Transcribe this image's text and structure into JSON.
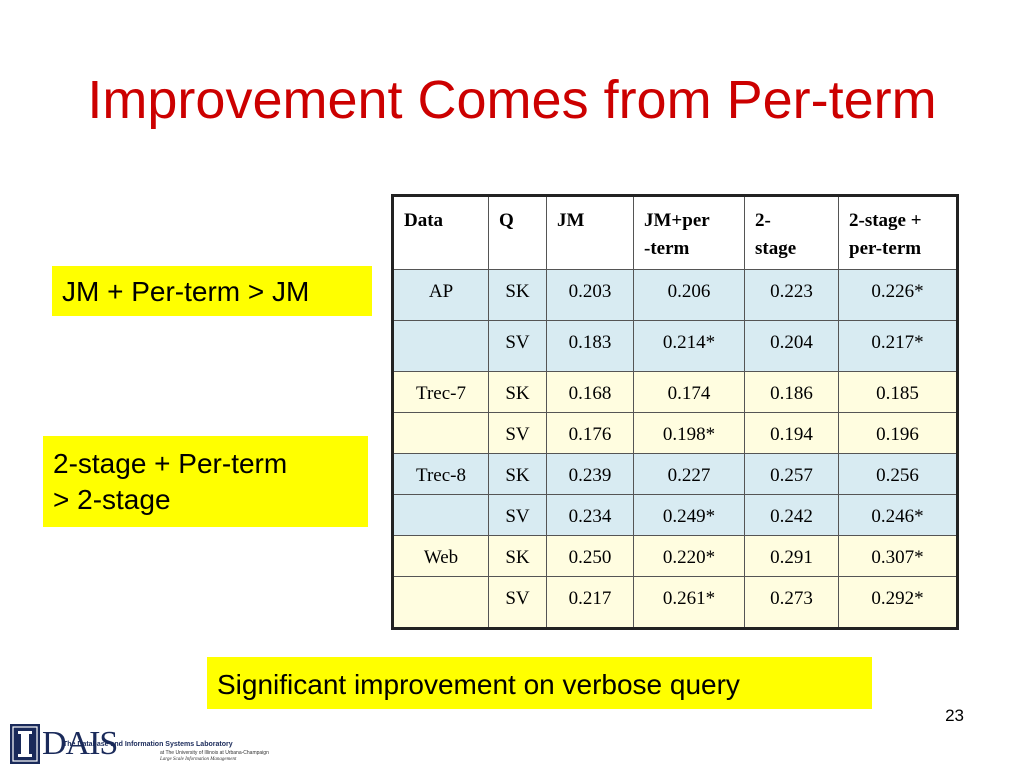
{
  "slide": {
    "title": "Improvement Comes from Per-term",
    "page_number": "23"
  },
  "callouts": {
    "callout1": "JM + Per-term > JM",
    "callout2_line1": "2-stage + Per-term",
    "callout2_line2": "> 2-stage",
    "callout3": "Significant improvement on verbose query"
  },
  "table": {
    "headers": {
      "data": "Data",
      "q": "Q",
      "jm": "JM",
      "jm_per_l1": "JM+per",
      "jm_per_l2": "-term",
      "two_stage_l1": "2-",
      "two_stage_l2": "stage",
      "two_stage_per_l1": "2-stage +",
      "two_stage_per_l2": "per-term"
    },
    "rows": [
      {
        "data": "AP",
        "q": "SK",
        "jm": "0.203",
        "jm_per": "0.206",
        "two_stage": "0.223",
        "two_stage_per": "0.226*"
      },
      {
        "data": "",
        "q": "SV",
        "jm": "0.183",
        "jm_per": "0.214*",
        "two_stage": "0.204",
        "two_stage_per": "0.217*"
      },
      {
        "data": "Trec-7",
        "q": "SK",
        "jm": "0.168",
        "jm_per": "0.174",
        "two_stage": "0.186",
        "two_stage_per": "0.185"
      },
      {
        "data": "",
        "q": "SV",
        "jm": "0.176",
        "jm_per": "0.198*",
        "two_stage": "0.194",
        "two_stage_per": "0.196"
      },
      {
        "data": "Trec-8",
        "q": "SK",
        "jm": "0.239",
        "jm_per": "0.227",
        "two_stage": "0.257",
        "two_stage_per": "0.256"
      },
      {
        "data": "",
        "q": "SV",
        "jm": "0.234",
        "jm_per": "0.249*",
        "two_stage": "0.242",
        "two_stage_per": "0.246*"
      },
      {
        "data": "Web",
        "q": "SK",
        "jm": "0.250",
        "jm_per": "0.220*",
        "two_stage": "0.291",
        "two_stage_per": "0.307*"
      },
      {
        "data": "",
        "q": "SV",
        "jm": "0.217",
        "jm_per": "0.261*",
        "two_stage": "0.273",
        "two_stage_per": "0.292*"
      }
    ]
  },
  "logo": {
    "wordmark": "IDAIS",
    "caption": "The Database and Information Systems Laboratory",
    "sub1": "at The University of Illinois at Urbana-Champaign",
    "sub2": "Large Scale Information Management"
  },
  "colors": {
    "title": "#cc0000",
    "callout_bg": "#ffff00",
    "row_blue": "#d8ebf2",
    "row_yellow": "#fffde0"
  }
}
